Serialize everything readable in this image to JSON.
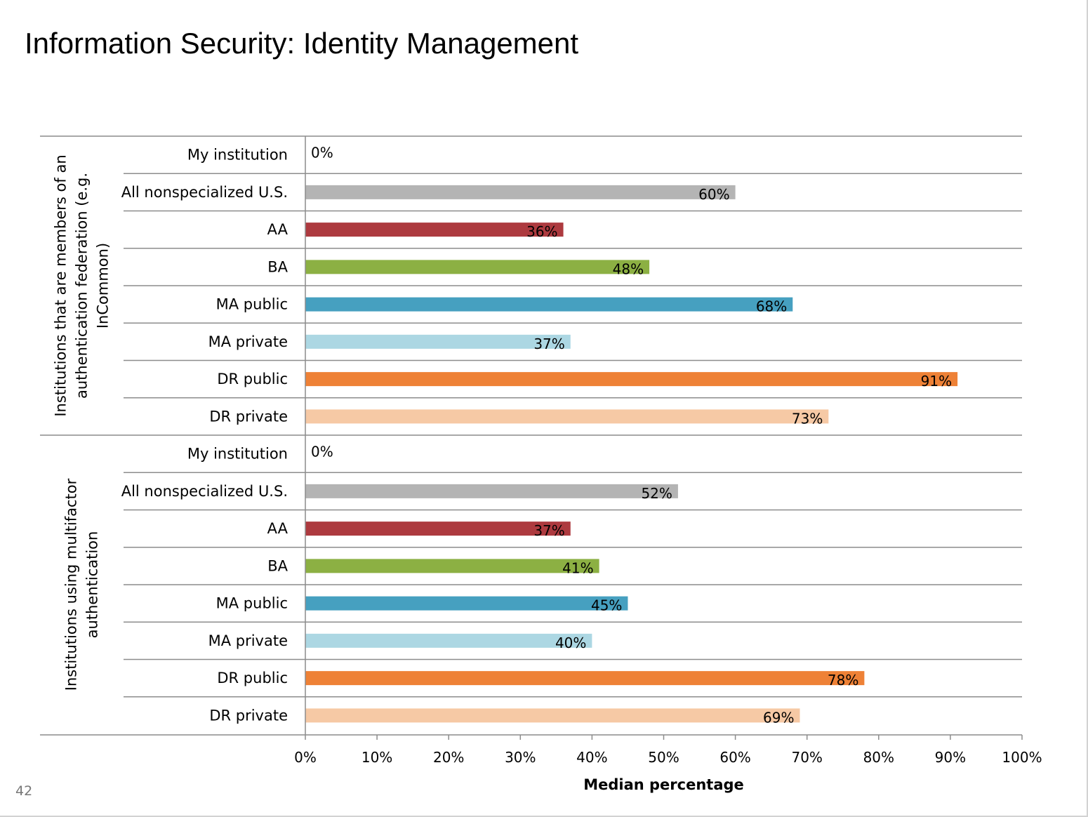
{
  "slide": {
    "title": "Information Security: Identity Management",
    "page_number": "42"
  },
  "colors": {
    "All nonspecialized U.S.": "#b4b4b4",
    "AA": "#ad3a3f",
    "BA": "#8cb043",
    "MA public": "#46a0c0",
    "MA private": "#acd7e3",
    "DR public": "#ee8136",
    "DR private": "#f6c9a5",
    "gridline": "#8c8c8c"
  },
  "chart_data": {
    "type": "bar",
    "orientation": "horizontal",
    "title": "",
    "xlabel": "Median percentage",
    "ylabel": "",
    "xlim": [
      0,
      100
    ],
    "x_ticks": [
      "0%",
      "10%",
      "20%",
      "30%",
      "40%",
      "50%",
      "60%",
      "70%",
      "80%",
      "90%",
      "100%"
    ],
    "grid": false,
    "legend": "none",
    "groups": [
      {
        "name": "Institutions that are members of an authentication federation (e.g. InCommon)",
        "categories": [
          "My institution",
          "All nonspecialized U.S.",
          "AA",
          "BA",
          "MA public",
          "MA private",
          "DR public",
          "DR private"
        ],
        "values": [
          0,
          60,
          36,
          48,
          68,
          37,
          91,
          73
        ],
        "labels": [
          "0%",
          "60%",
          "36%",
          "48%",
          "68%",
          "37%",
          "91%",
          "73%"
        ]
      },
      {
        "name": "Institutions using multifactor authentication",
        "categories": [
          "My institution",
          "All nonspecialized U.S.",
          "AA",
          "BA",
          "MA public",
          "MA private",
          "DR public",
          "DR private"
        ],
        "values": [
          0,
          52,
          37,
          41,
          45,
          40,
          78,
          69
        ],
        "labels": [
          "0%",
          "52%",
          "37%",
          "41%",
          "45%",
          "40%",
          "78%",
          "69%"
        ]
      }
    ]
  }
}
